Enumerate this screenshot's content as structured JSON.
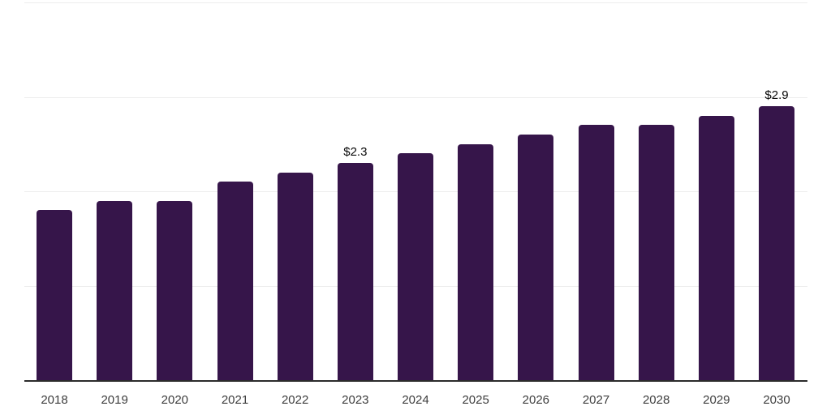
{
  "chart_data": {
    "type": "bar",
    "title": "",
    "xlabel": "",
    "ylabel": "",
    "categories": [
      "2018",
      "2019",
      "2020",
      "2021",
      "2022",
      "2023",
      "2024",
      "2025",
      "2026",
      "2027",
      "2028",
      "2029",
      "2030"
    ],
    "values": [
      1.8,
      1.9,
      1.9,
      2.1,
      2.2,
      2.3,
      2.4,
      2.5,
      2.6,
      2.7,
      2.7,
      2.8,
      2.9
    ],
    "data_labels": [
      {
        "category": "2023",
        "text": "$2.3"
      },
      {
        "category": "2030",
        "text": "$2.9"
      }
    ],
    "ylim": [
      0,
      4
    ],
    "grid": true,
    "legend_position": "none",
    "colors": {
      "bar": "#36154a",
      "gridline": "#ededed",
      "axis_line": "#2b2b2b",
      "tick_label": "#3c3c3c",
      "data_label": "#0a0a0a",
      "background": "#ffffff"
    }
  }
}
